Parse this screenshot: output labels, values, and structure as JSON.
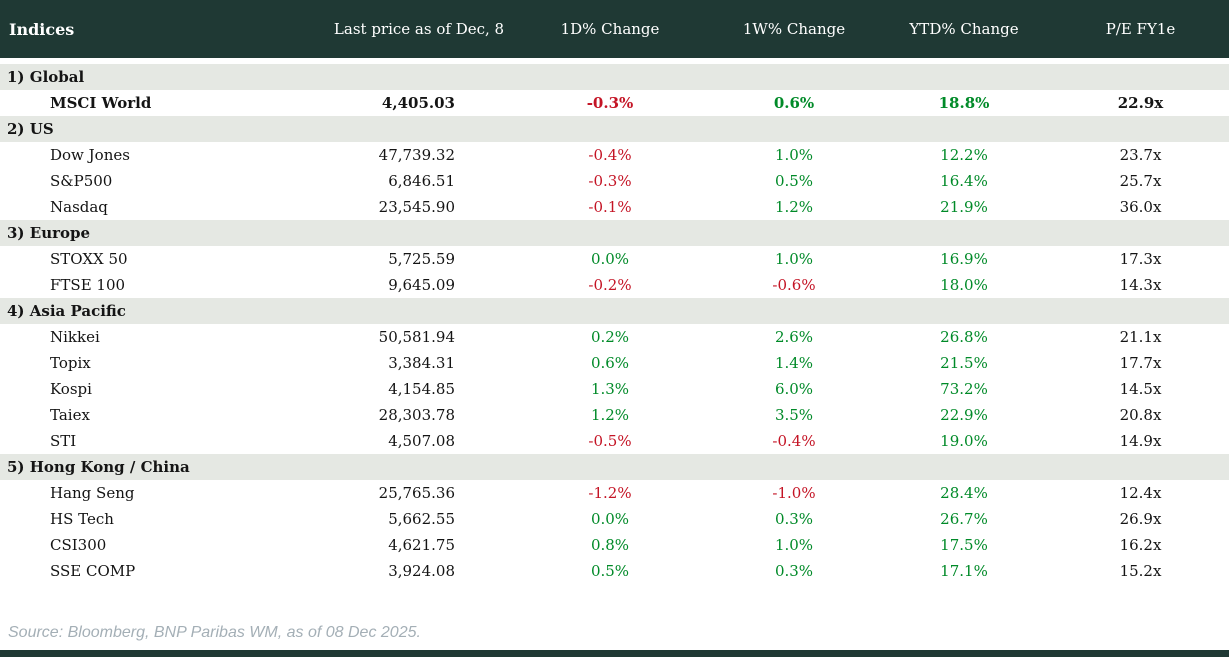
{
  "header": {
    "indices_label": "Indices",
    "columns": [
      "Last price as of Dec, 8",
      "1D% Change",
      "1W% Change",
      "YTD% Change",
      "P/E FY1e"
    ]
  },
  "chart_data": {
    "type": "table",
    "title": "Indices",
    "columns": [
      "Indices",
      "Last price as of Dec, 8",
      "1D% Change",
      "1W% Change",
      "YTD% Change",
      "P/E FY1e"
    ],
    "sections": [
      {
        "label": "1) Global",
        "rows": [
          {
            "name": "MSCI World",
            "bold": true,
            "last_price": "4,405.03",
            "d1": "-0.3%",
            "w1": "0.6%",
            "ytd": "18.8%",
            "pe": "22.9x"
          }
        ]
      },
      {
        "label": "2) US",
        "rows": [
          {
            "name": "Dow Jones",
            "bold": false,
            "last_price": "47,739.32",
            "d1": "-0.4%",
            "w1": "1.0%",
            "ytd": "12.2%",
            "pe": "23.7x"
          },
          {
            "name": "S&P500",
            "bold": false,
            "last_price": "6,846.51",
            "d1": "-0.3%",
            "w1": "0.5%",
            "ytd": "16.4%",
            "pe": "25.7x"
          },
          {
            "name": "Nasdaq",
            "bold": false,
            "last_price": "23,545.90",
            "d1": "-0.1%",
            "w1": "1.2%",
            "ytd": "21.9%",
            "pe": "36.0x"
          }
        ]
      },
      {
        "label": "3) Europe",
        "rows": [
          {
            "name": "STOXX 50",
            "bold": false,
            "last_price": "5,725.59",
            "d1": "0.0%",
            "w1": "1.0%",
            "ytd": "16.9%",
            "pe": "17.3x"
          },
          {
            "name": "FTSE 100",
            "bold": false,
            "last_price": "9,645.09",
            "d1": "-0.2%",
            "w1": "-0.6%",
            "ytd": "18.0%",
            "pe": "14.3x"
          }
        ]
      },
      {
        "label": "4) Asia Pacific",
        "rows": [
          {
            "name": "Nikkei",
            "bold": false,
            "last_price": "50,581.94",
            "d1": "0.2%",
            "w1": "2.6%",
            "ytd": "26.8%",
            "pe": "21.1x"
          },
          {
            "name": "Topix",
            "bold": false,
            "last_price": "3,384.31",
            "d1": "0.6%",
            "w1": "1.4%",
            "ytd": "21.5%",
            "pe": "17.7x"
          },
          {
            "name": "Kospi",
            "bold": false,
            "last_price": "4,154.85",
            "d1": "1.3%",
            "w1": "6.0%",
            "ytd": "73.2%",
            "pe": "14.5x"
          },
          {
            "name": "Taiex",
            "bold": false,
            "last_price": "28,303.78",
            "d1": "1.2%",
            "w1": "3.5%",
            "ytd": "22.9%",
            "pe": "20.8x"
          },
          {
            "name": "STI",
            "bold": false,
            "last_price": "4,507.08",
            "d1": "-0.5%",
            "w1": "-0.4%",
            "ytd": "19.0%",
            "pe": "14.9x"
          }
        ]
      },
      {
        "label": "5) Hong Kong / China",
        "rows": [
          {
            "name": "Hang Seng",
            "bold": false,
            "last_price": "25,765.36",
            "d1": "-1.2%",
            "w1": "-1.0%",
            "ytd": "28.4%",
            "pe": "12.4x"
          },
          {
            "name": "HS Tech",
            "bold": false,
            "last_price": "5,662.55",
            "d1": "0.0%",
            "w1": "0.3%",
            "ytd": "26.7%",
            "pe": "26.9x"
          },
          {
            "name": "CSI300",
            "bold": false,
            "last_price": "4,621.75",
            "d1": "0.8%",
            "w1": "1.0%",
            "ytd": "17.5%",
            "pe": "16.2x"
          },
          {
            "name": "SSE COMP",
            "bold": false,
            "last_price": "3,924.08",
            "d1": "0.5%",
            "w1": "0.3%",
            "ytd": "17.1%",
            "pe": "15.2x"
          }
        ]
      }
    ]
  },
  "footer": {
    "source": "Source: Bloomberg, BNP Paribas WM, as of 08 Dec 2025."
  },
  "colors": {
    "header_bg": "#1f3934",
    "header_text": "#ffffff",
    "section_bg": "#e5e8e3",
    "positive": "#008a28",
    "negative": "#c41425",
    "text": "#141414",
    "source_text": "#a4afb6"
  }
}
